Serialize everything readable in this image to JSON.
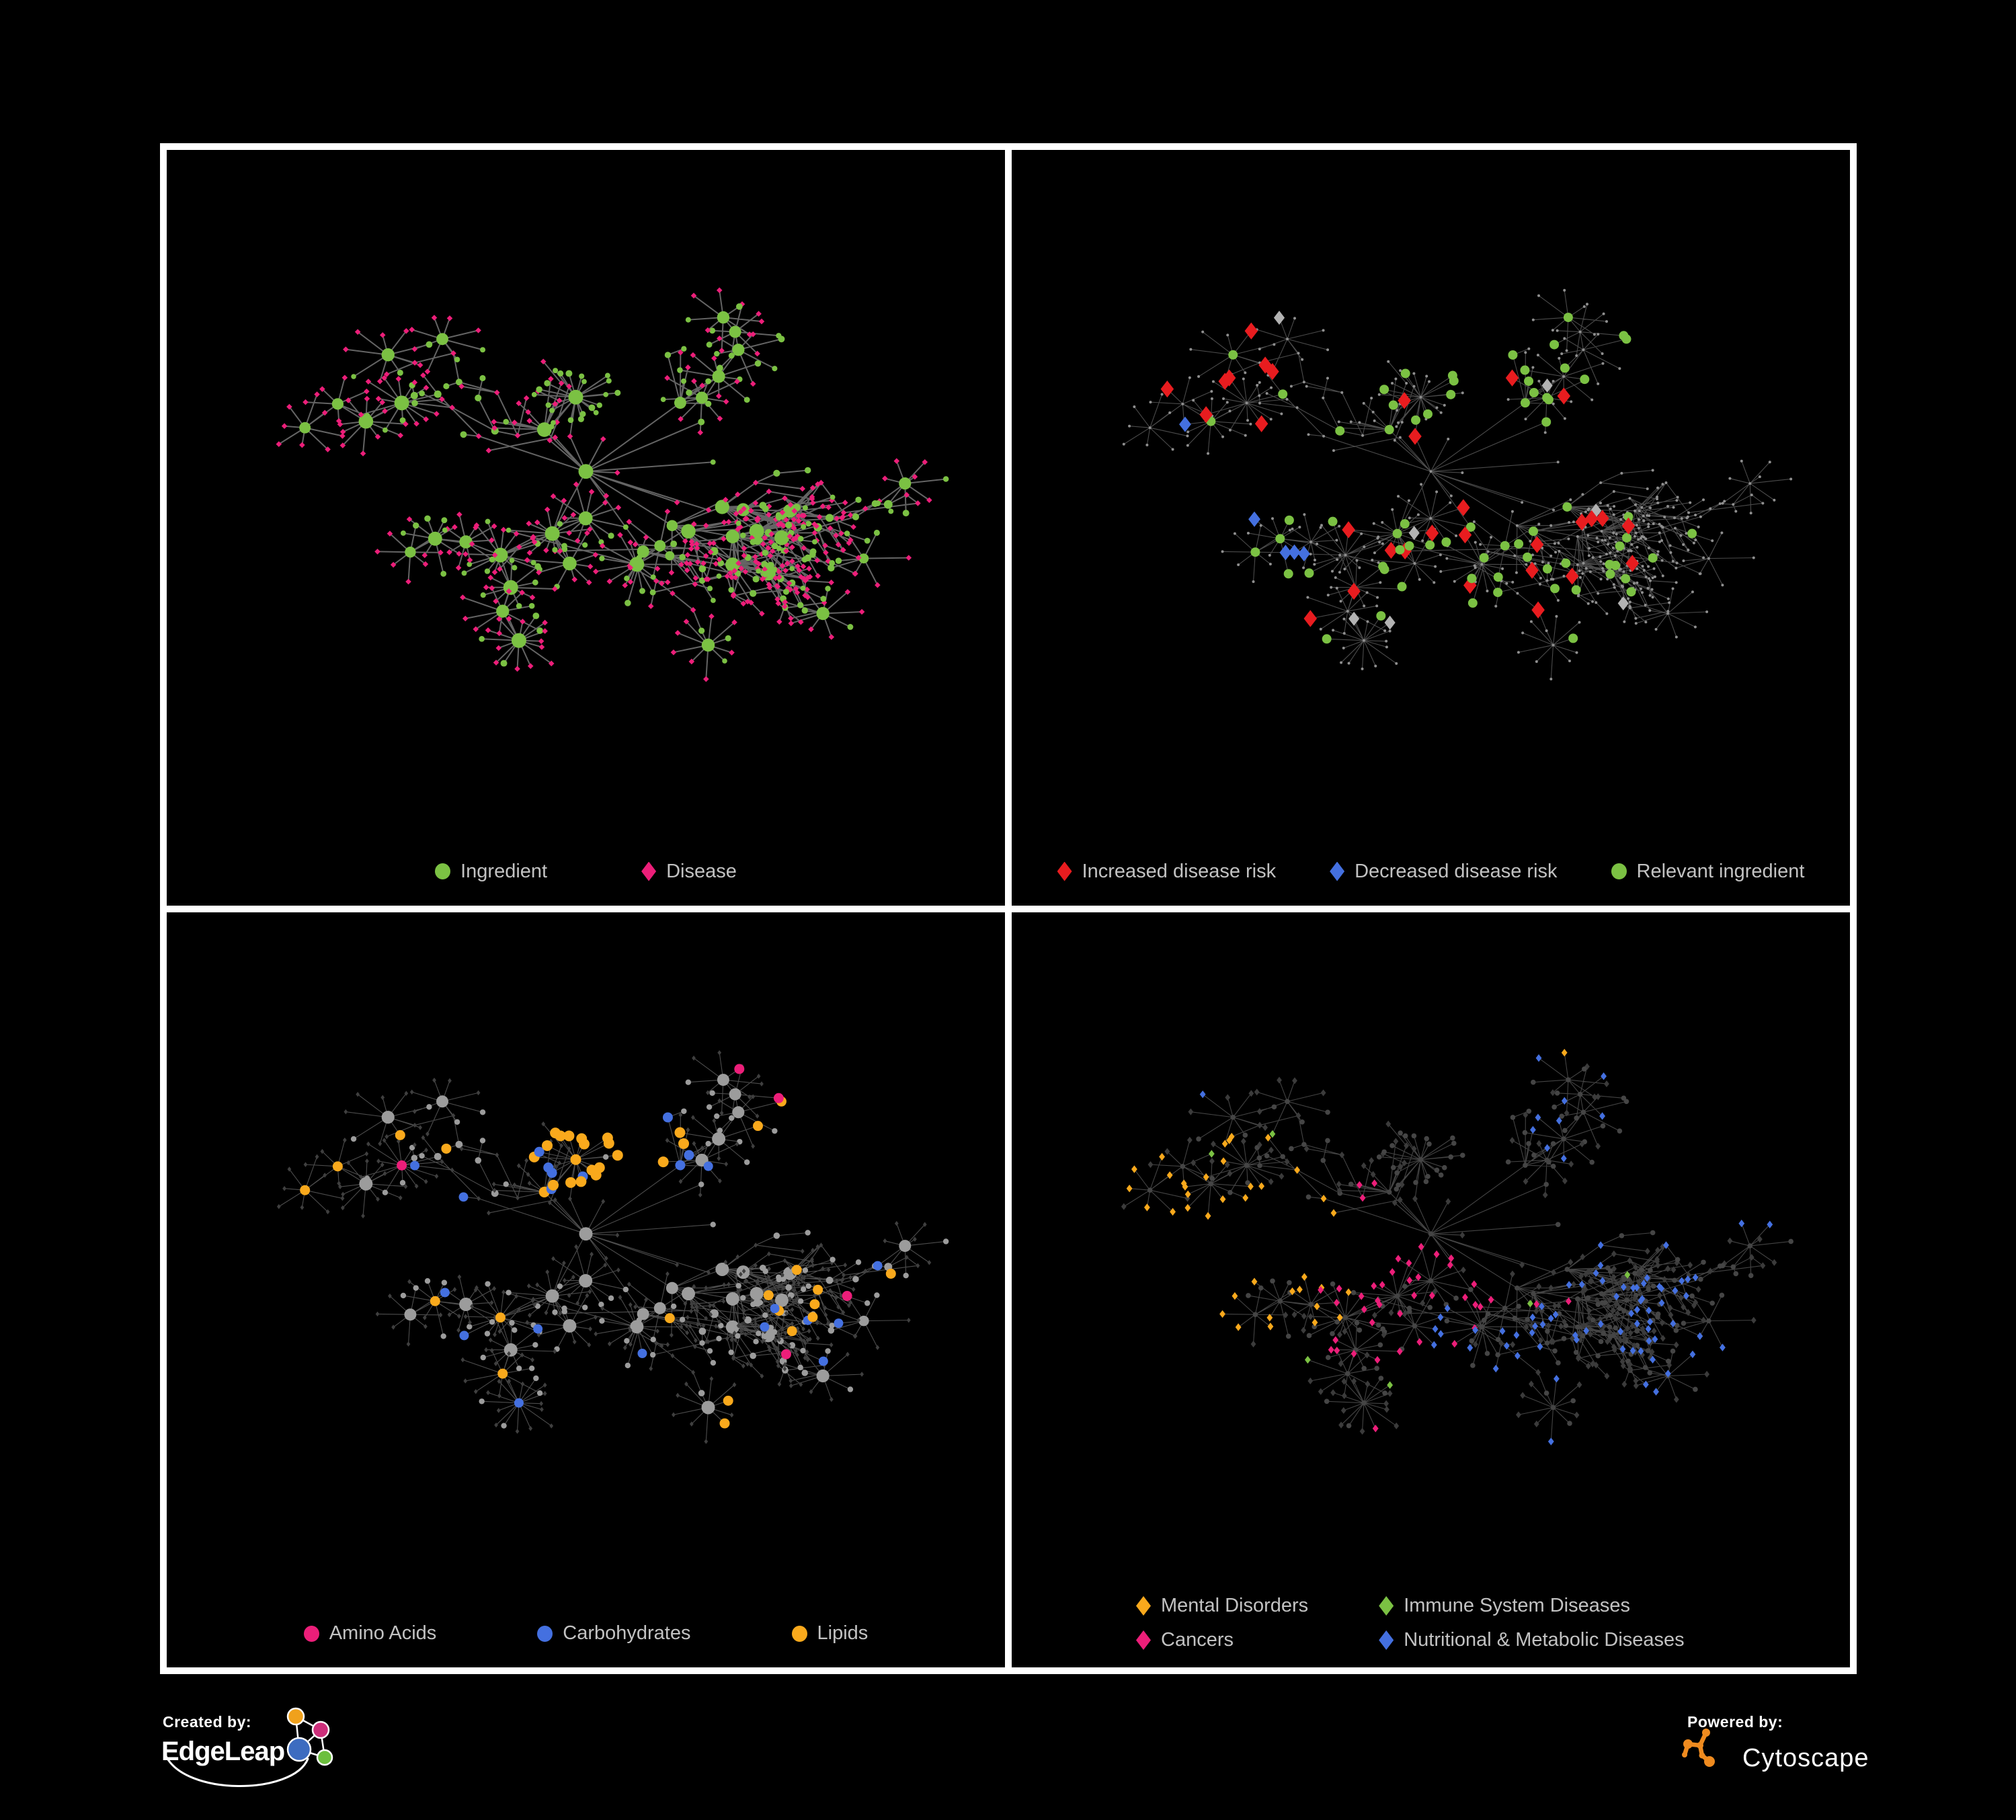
{
  "page_bg": "#000000",
  "frame_color": "#ffffff",
  "legend_text_color": "#c2c2c2",
  "palette": {
    "green": "#7bc143",
    "pink": "#ec1e79",
    "red": "#e81c1f",
    "blue": "#4470e0",
    "silver": "#b3b3b3",
    "amber": "#f9a91c",
    "light_gray_node": "#9c9c9c",
    "dark_gray_node": "#3b3b3b",
    "tiny_gray_node": "#8f8f8f",
    "dark_hub_node": "#454545"
  },
  "panels": [
    {
      "name": "ingredient-disease",
      "edge_color": "#696969",
      "edge_width": 2.0,
      "edge_opacity": 0.95,
      "legend_gap": 140,
      "legend": [
        {
          "shape": "circle",
          "color_key": "green",
          "label": "Ingredient"
        },
        {
          "shape": "diamond",
          "color_key": "pink",
          "label": "Disease"
        }
      ]
    },
    {
      "name": "disease-risk",
      "edge_color": "#5e5e5e",
      "edge_width": 1.1,
      "edge_opacity": 0.8,
      "legend_gap": 80,
      "legend": [
        {
          "shape": "diamond",
          "color_key": "red",
          "label": "Increased disease risk"
        },
        {
          "shape": "diamond",
          "color_key": "blue",
          "label": "Decreased disease risk"
        },
        {
          "shape": "circle",
          "color_key": "green",
          "label": "Relevant ingredient"
        }
      ]
    },
    {
      "name": "macronutrient-classes",
      "edge_color": "#8c8c8c",
      "edge_width": 1.1,
      "edge_opacity": 0.55,
      "legend_gap": 150,
      "legend": [
        {
          "shape": "circle",
          "color_key": "pink",
          "label": "Amino Acids"
        },
        {
          "shape": "circle",
          "color_key": "blue",
          "label": "Carbohydrates"
        },
        {
          "shape": "circle",
          "color_key": "amber",
          "label": "Lipids"
        }
      ]
    },
    {
      "name": "disease-classes",
      "edge_color": "#555555",
      "edge_width": 1.1,
      "edge_opacity": 0.8,
      "legend_columns": 2,
      "legend": [
        {
          "shape": "diamond",
          "color_key": "amber",
          "label": "Mental Disorders"
        },
        {
          "shape": "diamond",
          "color_key": "green",
          "label": "Immune System Diseases"
        },
        {
          "shape": "diamond",
          "color_key": "pink",
          "label": "Cancers"
        },
        {
          "shape": "diamond",
          "color_key": "blue",
          "label": "Nutritional & Metabolic Diseases"
        }
      ]
    }
  ],
  "footer": {
    "created_by_label": "Created by:",
    "edgeleap_brand": "EdgeLeap",
    "powered_by_label": "Powered by:",
    "cytoscape_brand": "Cytoscape"
  },
  "brand": {
    "edgeleap_orange": "#f0a11c",
    "edgeleap_magenta": "#cc2e7a",
    "edgeleap_blue": "#3d6cc0",
    "edgeleap_green": "#6cbf3e",
    "edgeleap_line": "#ffffff",
    "cytoscape_orange": "#ef8b1f",
    "wordmark_color": "#ffffff"
  }
}
